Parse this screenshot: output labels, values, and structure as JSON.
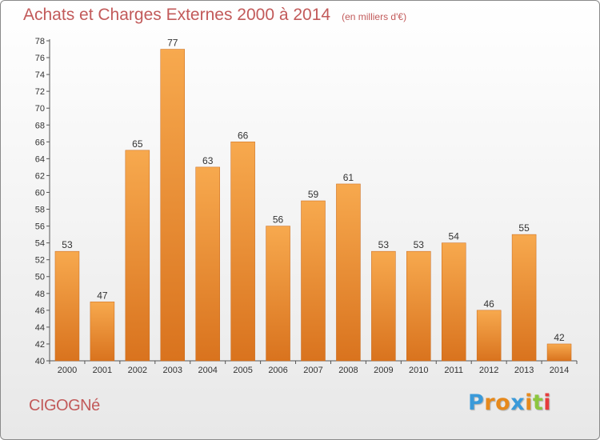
{
  "header": {
    "title": "Achats et Charges Externes 2000 à 2014",
    "subtitle": "(en milliers d'€)"
  },
  "footer": {
    "commune": "CIGOGNé",
    "logo": {
      "letters": [
        "P",
        "r",
        "o",
        "x",
        "i",
        "t",
        "i"
      ],
      "colors": [
        "#3a9ad9",
        "#e6891c",
        "#e6891c",
        "#3a9ad9",
        "#e6891c",
        "#8cc63f",
        "#e63c3c"
      ]
    }
  },
  "colors": {
    "bar_light": "#f7a94e",
    "bar_dark": "#d9731e",
    "axis": "#555555",
    "grid": "#bbbbbb",
    "title": "#c25a5a"
  },
  "chart_data": {
    "type": "bar",
    "title": "Achats et Charges Externes 2000 à 2014",
    "subtitle": "(en milliers d'€)",
    "xlabel": "",
    "ylabel": "",
    "categories": [
      "2000",
      "2001",
      "2002",
      "2003",
      "2004",
      "2005",
      "2006",
      "2007",
      "2008",
      "2009",
      "2010",
      "2011",
      "2012",
      "2013",
      "2014"
    ],
    "values": [
      53,
      47,
      65,
      77,
      63,
      66,
      56,
      59,
      61,
      53,
      53,
      54,
      46,
      55,
      42
    ],
    "ylim": [
      40,
      78
    ],
    "ytick_step": 2,
    "grid": false,
    "legend": "none"
  }
}
